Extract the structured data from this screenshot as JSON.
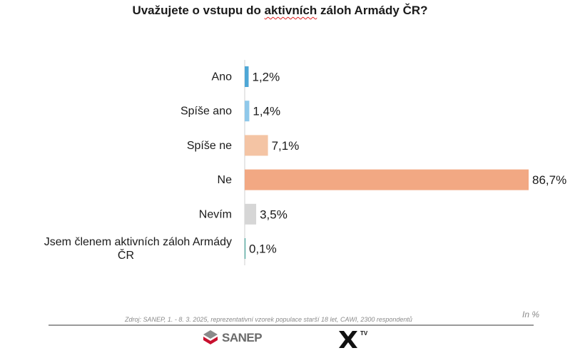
{
  "chart_data": {
    "type": "bar",
    "orientation": "horizontal",
    "title": "Uvažujete o vstupu do aktivních záloh Armády ČR?",
    "categories": [
      [
        "Ano"
      ],
      [
        "Spíše ano"
      ],
      [
        "Spíše ne"
      ],
      [
        "Ne"
      ],
      [
        "Nevím"
      ],
      [
        "Jsem členem aktivních záloh Armády",
        "ČR"
      ]
    ],
    "values": [
      1.2,
      1.4,
      7.1,
      86.7,
      3.5,
      0.1
    ],
    "labels": [
      "1,2%",
      "1,4%",
      "7,1%",
      "86,7%",
      "3,5%",
      "0,1%"
    ],
    "colors": [
      "#4ea7d6",
      "#8fc8ea",
      "#f4c4a4",
      "#f2a883",
      "#d6d6d6",
      "#2e9b8e"
    ],
    "xlim": [
      0,
      86.7
    ],
    "grid": false
  },
  "title_parts": {
    "before": "Uvažujete o vstupu do ",
    "highlight": "aktivních",
    "after": " záloh Armády ČR?"
  },
  "source": "Zdroj: SANEP, 1. - 8. 3. 2025, reprezentativní vzorek populace starší 18 let, CAWI, 2300 respondentů",
  "unit_note": "In %",
  "logos": {
    "sanep": "SANEP",
    "xtv_sup": "TV"
  }
}
